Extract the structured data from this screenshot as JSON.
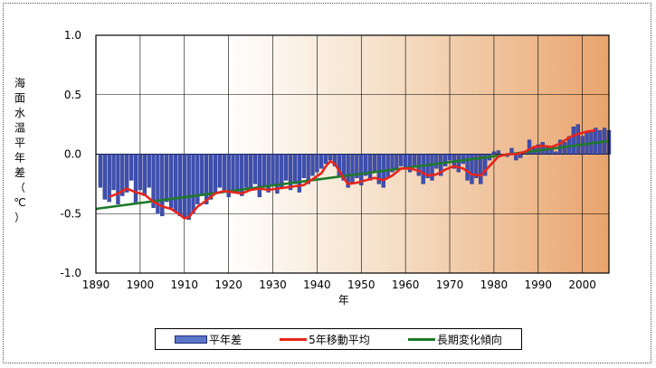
{
  "chart_data": {
    "type": "bar",
    "xlabel": "年",
    "ylabel": "海面水温平年差（℃）",
    "xlim": [
      1890,
      2006
    ],
    "ylim": [
      -1.0,
      1.0
    ],
    "x_ticks": [
      "1890",
      "1900",
      "1910",
      "1920",
      "1930",
      "1940",
      "1950",
      "1960",
      "1970",
      "1980",
      "1990",
      "2000"
    ],
    "y_ticks": [
      "1.0",
      "0.5",
      "0.0",
      "-0.5",
      "-1.0"
    ],
    "grid": true,
    "legend_position": "bottom",
    "colors": {
      "bars": "#3e4fb0",
      "bar_edge": "#1f2d80",
      "moving_avg": "#e8251c",
      "trend": "#1f7a2a"
    },
    "series": [
      {
        "name": "平年差",
        "type": "bar",
        "x": [
          1891,
          1892,
          1893,
          1894,
          1895,
          1896,
          1897,
          1898,
          1899,
          1900,
          1901,
          1902,
          1903,
          1904,
          1905,
          1906,
          1907,
          1908,
          1909,
          1910,
          1911,
          1912,
          1913,
          1914,
          1915,
          1916,
          1917,
          1918,
          1919,
          1920,
          1921,
          1922,
          1923,
          1924,
          1925,
          1926,
          1927,
          1928,
          1929,
          1930,
          1931,
          1932,
          1933,
          1934,
          1935,
          1936,
          1937,
          1938,
          1939,
          1940,
          1941,
          1942,
          1943,
          1944,
          1945,
          1946,
          1947,
          1948,
          1949,
          1950,
          1951,
          1952,
          1953,
          1954,
          1955,
          1956,
          1957,
          1958,
          1959,
          1960,
          1961,
          1962,
          1963,
          1964,
          1965,
          1966,
          1967,
          1968,
          1969,
          1970,
          1971,
          1972,
          1973,
          1974,
          1975,
          1976,
          1977,
          1978,
          1979,
          1980,
          1981,
          1982,
          1983,
          1984,
          1985,
          1986,
          1987,
          1988,
          1989,
          1990,
          1991,
          1992,
          1993,
          1994,
          1995,
          1996,
          1997,
          1998,
          1999,
          2000,
          2001,
          2002,
          2003,
          2004,
          2005,
          2006
        ],
        "values": [
          -0.28,
          -0.38,
          -0.4,
          -0.3,
          -0.42,
          -0.35,
          -0.32,
          -0.22,
          -0.42,
          -0.3,
          -0.35,
          -0.28,
          -0.45,
          -0.5,
          -0.52,
          -0.4,
          -0.45,
          -0.48,
          -0.52,
          -0.54,
          -0.55,
          -0.5,
          -0.42,
          -0.35,
          -0.42,
          -0.38,
          -0.32,
          -0.28,
          -0.3,
          -0.36,
          -0.3,
          -0.33,
          -0.35,
          -0.28,
          -0.3,
          -0.25,
          -0.36,
          -0.28,
          -0.32,
          -0.26,
          -0.33,
          -0.28,
          -0.22,
          -0.3,
          -0.25,
          -0.32,
          -0.2,
          -0.25,
          -0.18,
          -0.15,
          -0.12,
          -0.08,
          -0.05,
          -0.1,
          -0.18,
          -0.22,
          -0.28,
          -0.25,
          -0.2,
          -0.26,
          -0.18,
          -0.22,
          -0.15,
          -0.25,
          -0.28,
          -0.2,
          -0.15,
          -0.12,
          -0.1,
          -0.12,
          -0.15,
          -0.1,
          -0.18,
          -0.25,
          -0.2,
          -0.22,
          -0.12,
          -0.18,
          -0.1,
          -0.05,
          -0.12,
          -0.15,
          -0.08,
          -0.22,
          -0.25,
          -0.2,
          -0.25,
          -0.18,
          -0.05,
          0.02,
          0.03,
          0.0,
          -0.02,
          0.05,
          -0.05,
          -0.03,
          0.01,
          0.12,
          0.05,
          0.08,
          0.1,
          0.07,
          0.05,
          0.02,
          0.12,
          0.1,
          0.15,
          0.23,
          0.25,
          0.15,
          0.18,
          0.2,
          0.22,
          0.2,
          0.22,
          0.2
        ]
      },
      {
        "name": "5年移動平均",
        "type": "line",
        "x": [
          1893,
          1895,
          1897,
          1899,
          1901,
          1903,
          1905,
          1907,
          1909,
          1910,
          1911,
          1913,
          1915,
          1917,
          1919,
          1921,
          1923,
          1925,
          1927,
          1929,
          1931,
          1933,
          1935,
          1937,
          1939,
          1941,
          1942,
          1943,
          1944,
          1945,
          1946,
          1947,
          1949,
          1951,
          1953,
          1955,
          1957,
          1959,
          1961,
          1963,
          1965,
          1967,
          1969,
          1971,
          1973,
          1975,
          1977,
          1979,
          1981,
          1983,
          1985,
          1987,
          1989,
          1991,
          1993,
          1995,
          1997,
          1999,
          2001,
          2003
        ],
        "values": [
          -0.36,
          -0.33,
          -0.29,
          -0.32,
          -0.34,
          -0.4,
          -0.44,
          -0.46,
          -0.51,
          -0.54,
          -0.53,
          -0.44,
          -0.39,
          -0.33,
          -0.31,
          -0.32,
          -0.33,
          -0.3,
          -0.29,
          -0.3,
          -0.29,
          -0.28,
          -0.27,
          -0.26,
          -0.21,
          -0.16,
          -0.1,
          -0.06,
          -0.08,
          -0.14,
          -0.2,
          -0.25,
          -0.24,
          -0.22,
          -0.2,
          -0.22,
          -0.18,
          -0.12,
          -0.12,
          -0.14,
          -0.18,
          -0.17,
          -0.13,
          -0.1,
          -0.12,
          -0.17,
          -0.18,
          -0.1,
          -0.02,
          0.0,
          0.0,
          0.02,
          0.06,
          0.07,
          0.06,
          0.09,
          0.14,
          0.17,
          0.19,
          0.2
        ]
      },
      {
        "name": "長期変化傾向",
        "type": "line",
        "x": [
          1890,
          2006
        ],
        "values": [
          -0.46,
          0.11
        ]
      }
    ]
  }
}
